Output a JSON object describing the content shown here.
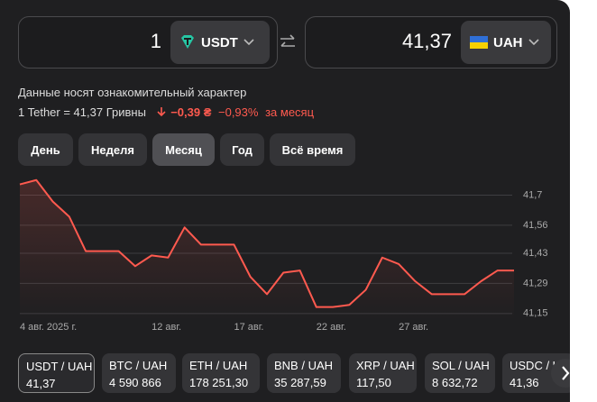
{
  "converter": {
    "from": {
      "amount": "1",
      "currency": "USDT"
    },
    "to": {
      "amount": "41,37",
      "currency": "UAH"
    }
  },
  "disclaimer": "Данные носят ознакомительный характер",
  "rate": {
    "text": "1 Tether = 41,37 Гривны",
    "change": "−0,39 ₴",
    "change_percent": "−0,93%",
    "period": "за месяц"
  },
  "periods": [
    "День",
    "Неделя",
    "Месяц",
    "Год",
    "Всё время"
  ],
  "chart_data": {
    "type": "line",
    "categories": [
      "4 авг. 2025 г.",
      null,
      null,
      null,
      null,
      null,
      null,
      null,
      "12 авг.",
      null,
      null,
      null,
      null,
      "17 авг.",
      null,
      null,
      null,
      null,
      "22 авг.",
      null,
      null,
      null,
      null,
      "27 авг.",
      null,
      null,
      null,
      null,
      null,
      null,
      null
    ],
    "values": [
      41.75,
      41.77,
      41.67,
      41.6,
      41.44,
      41.44,
      41.44,
      41.37,
      41.42,
      41.41,
      41.55,
      41.47,
      41.47,
      41.47,
      41.32,
      41.24,
      41.34,
      41.35,
      41.18,
      41.18,
      41.19,
      41.26,
      41.41,
      41.38,
      41.3,
      41.24,
      41.24,
      41.24,
      41.3,
      41.35,
      41.35
    ],
    "color": "#ff5a4f",
    "ylim": [
      41.12,
      41.79
    ],
    "yticks": [
      {
        "value": 41.15,
        "label": "41,15"
      },
      {
        "value": 41.29,
        "label": "41,29"
      },
      {
        "value": 41.43,
        "label": "41,43"
      },
      {
        "value": 41.56,
        "label": "41,56"
      },
      {
        "value": 41.7,
        "label": "41,7"
      }
    ],
    "grid": true
  },
  "tickers": [
    {
      "pair": "USDT / UAH",
      "price": "41,37"
    },
    {
      "pair": "BTC / UAH",
      "price": "4 590 866"
    },
    {
      "pair": "ETH / UAH",
      "price": "178 251,30"
    },
    {
      "pair": "BNB / UAH",
      "price": "35 287,59"
    },
    {
      "pair": "XRP / UAH",
      "price": "117,50"
    },
    {
      "pair": "SOL / UAH",
      "price": "8 632,72"
    },
    {
      "pair": "USDC / UAH",
      "price": "41,36"
    }
  ]
}
